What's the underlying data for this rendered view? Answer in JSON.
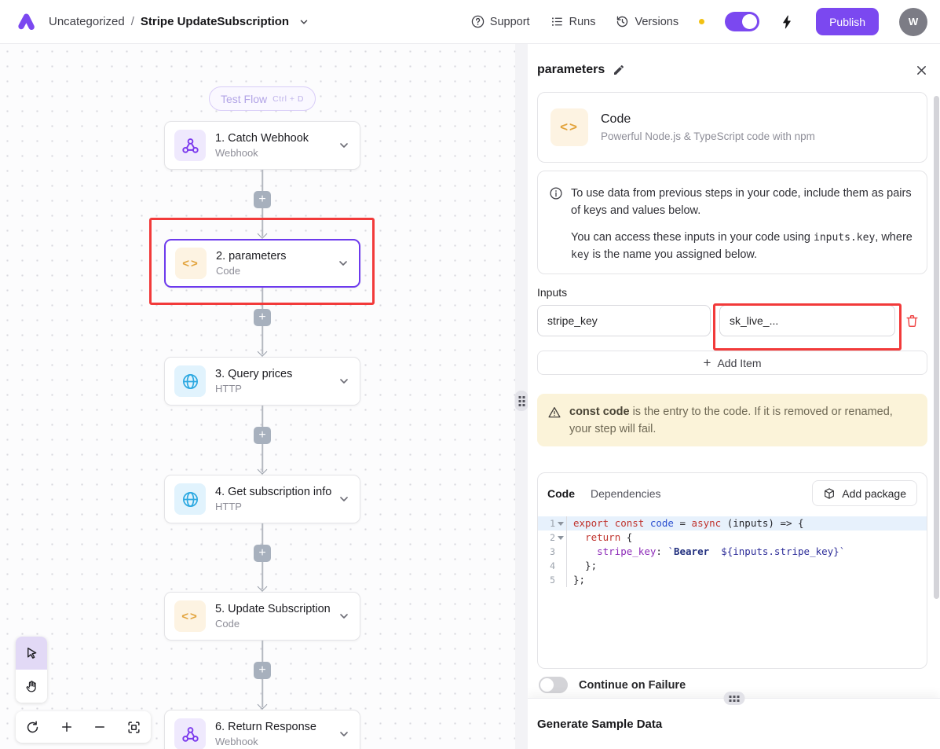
{
  "header": {
    "breadcrumb": {
      "category": "Uncategorized",
      "separator": "/",
      "flow_name": "Stripe UpdateSubscription"
    },
    "nav": {
      "support": "Support",
      "runs": "Runs",
      "versions": "Versions"
    },
    "publish_label": "Publish",
    "avatar_initial": "W"
  },
  "canvas": {
    "test_flow": {
      "label": "Test Flow",
      "shortcut": "Ctrl + D"
    },
    "steps": [
      {
        "title": "1. Catch Webhook",
        "type": "Webhook",
        "icon": "webhook-icon"
      },
      {
        "title": "2. parameters",
        "type": "Code",
        "icon": "code-icon"
      },
      {
        "title": "3. Query prices",
        "type": "HTTP",
        "icon": "globe-icon"
      },
      {
        "title": "4. Get subscription info",
        "type": "HTTP",
        "icon": "globe-icon"
      },
      {
        "title": "5. Update Subscription",
        "type": "Code",
        "icon": "code-icon"
      },
      {
        "title": "6. Return Response",
        "type": "Webhook",
        "icon": "webhook-icon"
      }
    ]
  },
  "panel": {
    "title": "parameters",
    "piece": {
      "name": "Code",
      "description": "Powerful Node.js & TypeScript code with npm"
    },
    "info": {
      "p1": "To use data from previous steps in your code, include them as pairs of keys and values below.",
      "p2_before": "You can access these inputs in your code using ",
      "p2_code1": "inputs.key",
      "p2_mid": ", where ",
      "p2_code2": "key",
      "p2_after": " is the name you assigned below."
    },
    "inputs": {
      "label": "Inputs",
      "key_value": "stripe_key",
      "value_value": "sk_live_...",
      "add_item_label": "Add Item"
    },
    "warning": {
      "bold": "const code",
      "text": " is the entry to the code. If it is removed or renamed, your step will fail."
    },
    "editor": {
      "tabs": {
        "code": "Code",
        "dependencies": "Dependencies"
      },
      "add_package_label": "Add package",
      "active_line": 1,
      "fold_lines": [
        1,
        2
      ],
      "lines": [
        [
          {
            "t": "export",
            "c": "kw"
          },
          {
            "t": " ",
            "c": ""
          },
          {
            "t": "const",
            "c": "kw"
          },
          {
            "t": " ",
            "c": ""
          },
          {
            "t": "code",
            "c": "def"
          },
          {
            "t": " = ",
            "c": ""
          },
          {
            "t": "async",
            "c": "kw"
          },
          {
            "t": " (inputs) => {",
            "c": ""
          }
        ],
        [
          {
            "t": "  ",
            "c": ""
          },
          {
            "t": "return",
            "c": "kw"
          },
          {
            "t": " {",
            "c": ""
          }
        ],
        [
          {
            "t": "    ",
            "c": ""
          },
          {
            "t": "stripe_key",
            "c": "prop"
          },
          {
            "t": ": ",
            "c": ""
          },
          {
            "t": "`",
            "c": "str"
          },
          {
            "t": "Bearer ",
            "c": "strb"
          },
          {
            "t": " ",
            "c": "str"
          },
          {
            "t": "${inputs.stripe_key}",
            "c": "interp"
          },
          {
            "t": "`",
            "c": "str"
          }
        ],
        [
          {
            "t": "  };",
            "c": ""
          }
        ],
        [
          {
            "t": "};",
            "c": ""
          }
        ]
      ]
    },
    "continue_on_failure_label": "Continue on Failure",
    "footer_title": "Generate Sample Data"
  },
  "colors": {
    "accent": "#7b48f0",
    "annotation_red": "#f23a3a",
    "warning_bg": "#fbf3d9",
    "webhook_purple": "#7c3aed",
    "http_blue": "#2da9e1",
    "code_amber": "#e2a33c"
  }
}
